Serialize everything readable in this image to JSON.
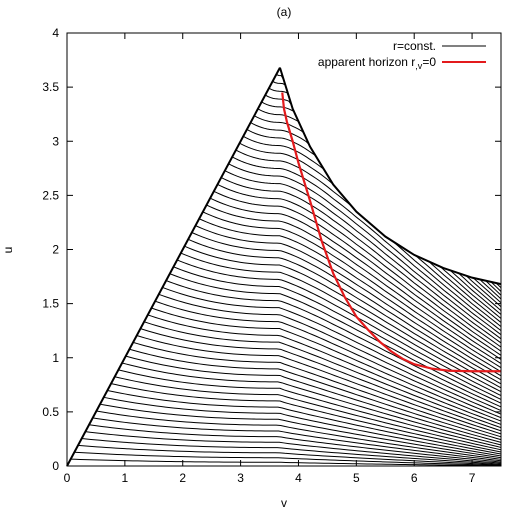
{
  "chart_data": {
    "type": "line",
    "title": "(a)",
    "xlabel": "v",
    "ylabel": "u",
    "xlim": [
      0,
      7.5
    ],
    "ylim": [
      0,
      4
    ],
    "x_ticks": [
      {
        "value": 0,
        "label": "0"
      },
      {
        "value": 1,
        "label": "1"
      },
      {
        "value": 2,
        "label": "2"
      },
      {
        "value": 3,
        "label": "3"
      },
      {
        "value": 4,
        "label": "4"
      },
      {
        "value": 5,
        "label": "5"
      },
      {
        "value": 6,
        "label": "6"
      },
      {
        "value": 7,
        "label": "7"
      }
    ],
    "y_ticks": [
      {
        "value": 0,
        "label": "0"
      },
      {
        "value": 0.5,
        "label": "0.5"
      },
      {
        "value": 1,
        "label": "1"
      },
      {
        "value": 1.5,
        "label": "1.5"
      },
      {
        "value": 2,
        "label": "2"
      },
      {
        "value": 2.5,
        "label": "2.5"
      },
      {
        "value": 3,
        "label": "3"
      },
      {
        "value": 3.5,
        "label": "3.5"
      },
      {
        "value": 4,
        "label": "4"
      }
    ],
    "grid": false,
    "legend_position": "top-right",
    "series": [
      {
        "name": "r=const.",
        "color": "#000000",
        "kind": "family",
        "peak": [
          3.68,
          3.68
        ],
        "end_at_right": [
          7.5,
          1.68
        ],
        "upper_boundary": [
          [
            3.68,
            3.68
          ],
          [
            3.9,
            3.3
          ],
          [
            4.2,
            2.95
          ],
          [
            4.6,
            2.6
          ],
          [
            5.0,
            2.35
          ],
          [
            5.5,
            2.12
          ],
          [
            6.0,
            1.95
          ],
          [
            6.5,
            1.83
          ],
          [
            7.0,
            1.74
          ],
          [
            7.5,
            1.68
          ]
        ]
      },
      {
        "name": "apparent horizon r,v=0",
        "color": "#e31a1c",
        "points": [
          [
            3.72,
            3.45
          ],
          [
            3.75,
            3.3
          ],
          [
            3.8,
            3.18
          ],
          [
            3.9,
            3.0
          ],
          [
            4.0,
            2.8
          ],
          [
            4.2,
            2.45
          ],
          [
            4.4,
            2.08
          ],
          [
            4.6,
            1.78
          ],
          [
            4.8,
            1.56
          ],
          [
            5.0,
            1.38
          ],
          [
            5.2,
            1.26
          ],
          [
            5.4,
            1.15
          ],
          [
            5.6,
            1.06
          ],
          [
            5.8,
            0.99
          ],
          [
            6.0,
            0.94
          ],
          [
            6.3,
            0.9
          ],
          [
            6.6,
            0.88
          ],
          [
            7.0,
            0.875
          ],
          [
            7.5,
            0.875
          ]
        ]
      }
    ],
    "legend": [
      {
        "label": "r=const.",
        "color": "#000000"
      },
      {
        "label": "apparent horizon r",
        "subscript": ",v",
        "suffix": "=0",
        "color": "#e31a1c"
      }
    ]
  }
}
